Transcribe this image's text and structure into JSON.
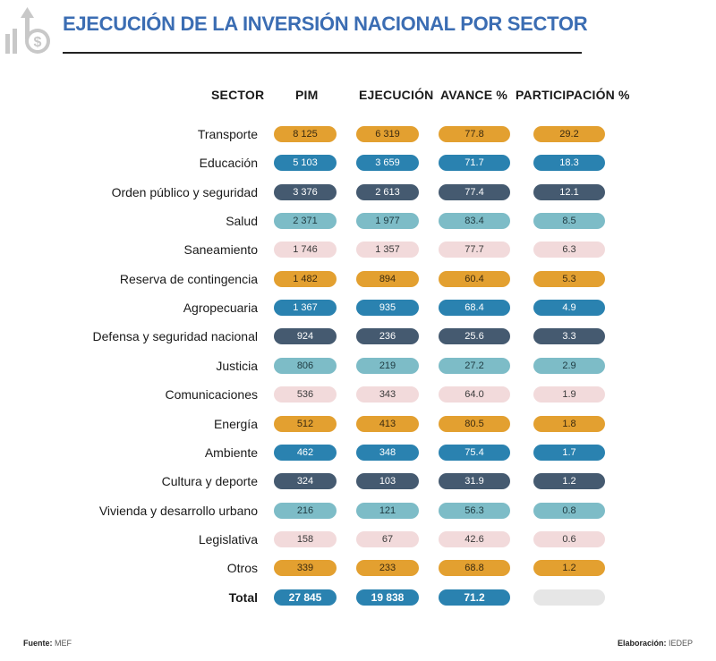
{
  "header": {
    "title": "EJECUCIÓN DE LA INVERSIÓN NACIONAL POR SECTOR",
    "logo_icon": "chart-bars-dollar-arrow-icon"
  },
  "colors": {
    "title": "#3b6db3",
    "orange": "#e3a030",
    "blue": "#2a82b0",
    "slate": "#455a70",
    "teal": "#7dbcc7",
    "pink": "#f2dadb",
    "empty": "#e6e6e6"
  },
  "chart_data": {
    "type": "table",
    "title": "EJECUCIÓN DE LA INVERSIÓN NACIONAL POR SECTOR",
    "columns": [
      "SECTOR",
      "PIM",
      "EJECUCIÓN",
      "AVANCE %",
      "PARTICIPACIÓN %"
    ],
    "rows": [
      {
        "sector": "Transporte",
        "pim": "8 125",
        "ejecucion": "6 319",
        "avance": "77.8",
        "participacion": "29.2",
        "color": "orange"
      },
      {
        "sector": "Educación",
        "pim": "5 103",
        "ejecucion": "3 659",
        "avance": "71.7",
        "participacion": "18.3",
        "color": "blue"
      },
      {
        "sector": "Orden público y seguridad",
        "pim": "3 376",
        "ejecucion": "2 613",
        "avance": "77.4",
        "participacion": "12.1",
        "color": "slate"
      },
      {
        "sector": "Salud",
        "pim": "2 371",
        "ejecucion": "1 977",
        "avance": "83.4",
        "participacion": "8.5",
        "color": "teal"
      },
      {
        "sector": "Saneamiento",
        "pim": "1 746",
        "ejecucion": "1 357",
        "avance": "77.7",
        "participacion": "6.3",
        "color": "pink"
      },
      {
        "sector": "Reserva de contingencia",
        "pim": "1 482",
        "ejecucion": "894",
        "avance": "60.4",
        "participacion": "5.3",
        "color": "orange"
      },
      {
        "sector": "Agropecuaria",
        "pim": "1 367",
        "ejecucion": "935",
        "avance": "68.4",
        "participacion": "4.9",
        "color": "blue"
      },
      {
        "sector": "Defensa y seguridad nacional",
        "pim": "924",
        "ejecucion": "236",
        "avance": "25.6",
        "participacion": "3.3",
        "color": "slate"
      },
      {
        "sector": "Justicia",
        "pim": "806",
        "ejecucion": "219",
        "avance": "27.2",
        "participacion": "2.9",
        "color": "teal"
      },
      {
        "sector": "Comunicaciones",
        "pim": "536",
        "ejecucion": "343",
        "avance": "64.0",
        "participacion": "1.9",
        "color": "pink"
      },
      {
        "sector": "Energía",
        "pim": "512",
        "ejecucion": "413",
        "avance": "80.5",
        "participacion": "1.8",
        "color": "orange"
      },
      {
        "sector": "Ambiente",
        "pim": "462",
        "ejecucion": "348",
        "avance": "75.4",
        "participacion": "1.7",
        "color": "blue"
      },
      {
        "sector": "Cultura y deporte",
        "pim": "324",
        "ejecucion": "103",
        "avance": "31.9",
        "participacion": "1.2",
        "color": "slate"
      },
      {
        "sector": "Vivienda y desarrollo urbano",
        "pim": "216",
        "ejecucion": "121",
        "avance": "56.3",
        "participacion": "0.8",
        "color": "teal"
      },
      {
        "sector": "Legislativa",
        "pim": "158",
        "ejecucion": "67",
        "avance": "42.6",
        "participacion": "0.6",
        "color": "pink"
      },
      {
        "sector": "Otros",
        "pim": "339",
        "ejecucion": "233",
        "avance": "68.8",
        "participacion": "1.2",
        "color": "orange"
      }
    ],
    "total": {
      "sector": "Total",
      "pim": "27 845",
      "ejecucion": "19 838",
      "avance": "71.2",
      "participacion": ""
    }
  },
  "footer": {
    "source_label": "Fuente:",
    "source_value": "MEF",
    "credit_label": "Elaboración:",
    "credit_value": "IEDEP"
  }
}
